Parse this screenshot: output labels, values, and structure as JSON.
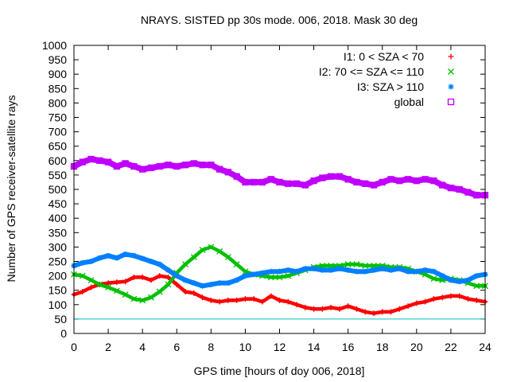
{
  "chart_data": {
    "type": "scatter",
    "title": "NRAYS. SISTED pp 30s mode. 006, 2018. Mask 30 deg",
    "xlabel": "GPS time [hours of doy 006, 2018]",
    "ylabel": "Number of GPS receiver-satellite rays",
    "xlim": [
      0,
      24
    ],
    "ylim": [
      0,
      1000
    ],
    "x_ticks": [
      0,
      2,
      4,
      6,
      8,
      10,
      12,
      14,
      16,
      18,
      20,
      22,
      24
    ],
    "y_ticks": [
      0,
      50,
      100,
      150,
      200,
      250,
      300,
      350,
      400,
      450,
      500,
      550,
      600,
      650,
      700,
      750,
      800,
      850,
      900,
      950,
      1000
    ],
    "legend_position": "top-right",
    "threshold_line": {
      "y": 50,
      "color": "#00c0c0"
    },
    "series": [
      {
        "name": "I1: 0 < SZA < 70",
        "color": "#ff0000",
        "marker": "+",
        "x": [
          0,
          0.5,
          1,
          1.5,
          2,
          2.5,
          3,
          3.5,
          4,
          4.5,
          5,
          5.5,
          6,
          6.5,
          7,
          7.5,
          8,
          8.5,
          9,
          9.5,
          10,
          10.5,
          11,
          11.5,
          12,
          12.5,
          13,
          13.5,
          14,
          14.5,
          15,
          15.5,
          16,
          16.5,
          17,
          17.5,
          18,
          18.5,
          19,
          19.5,
          20,
          20.5,
          21,
          21.5,
          22,
          22.5,
          23,
          23.5,
          24
        ],
        "y": [
          135,
          145,
          160,
          170,
          175,
          178,
          180,
          195,
          195,
          185,
          200,
          195,
          170,
          145,
          140,
          125,
          115,
          110,
          115,
          115,
          120,
          120,
          110,
          130,
          115,
          110,
          100,
          90,
          85,
          85,
          90,
          85,
          95,
          85,
          75,
          70,
          75,
          75,
          85,
          95,
          105,
          110,
          120,
          125,
          130,
          130,
          120,
          115,
          110
        ]
      },
      {
        "name": "I2: 70 <= SZA <= 110",
        "color": "#00c000",
        "marker": "x",
        "x": [
          0,
          0.5,
          1,
          1.5,
          2,
          2.5,
          3,
          3.5,
          4,
          4.5,
          5,
          5.5,
          6,
          6.5,
          7,
          7.5,
          8,
          8.5,
          9,
          9.5,
          10,
          10.5,
          11,
          11.5,
          12,
          12.5,
          13,
          13.5,
          14,
          14.5,
          15,
          15.5,
          16,
          16.5,
          17,
          17.5,
          18,
          18.5,
          19,
          19.5,
          20,
          20.5,
          21,
          21.5,
          22,
          22.5,
          23,
          23.5,
          24
        ],
        "y": [
          205,
          200,
          185,
          170,
          160,
          148,
          135,
          120,
          115,
          125,
          145,
          170,
          210,
          240,
          265,
          290,
          300,
          285,
          265,
          240,
          215,
          205,
          200,
          195,
          195,
          200,
          210,
          220,
          230,
          235,
          235,
          235,
          240,
          240,
          235,
          235,
          235,
          230,
          230,
          225,
          215,
          205,
          190,
          185,
          190,
          185,
          175,
          165,
          165
        ]
      },
      {
        "name": "I3: SZA > 110",
        "color": "#0080ff",
        "marker": "*",
        "x": [
          0,
          0.5,
          1,
          1.5,
          2,
          2.5,
          3,
          3.5,
          4,
          4.5,
          5,
          5.5,
          6,
          6.5,
          7,
          7.5,
          8,
          8.5,
          9,
          9.5,
          10,
          10.5,
          11,
          11.5,
          12,
          12.5,
          13,
          13.5,
          14,
          14.5,
          15,
          15.5,
          16,
          16.5,
          17,
          17.5,
          18,
          18.5,
          19,
          19.5,
          20,
          20.5,
          21,
          21.5,
          22,
          22.5,
          23,
          23.5,
          24
        ],
        "y": [
          235,
          245,
          250,
          262,
          270,
          262,
          275,
          270,
          260,
          250,
          240,
          220,
          200,
          185,
          175,
          165,
          170,
          175,
          175,
          185,
          200,
          205,
          210,
          215,
          215,
          220,
          215,
          225,
          225,
          220,
          220,
          225,
          220,
          215,
          215,
          220,
          225,
          220,
          225,
          215,
          215,
          220,
          215,
          200,
          185,
          180,
          185,
          200,
          205
        ]
      },
      {
        "name": "global",
        "color": "#c000ff",
        "marker": "square",
        "x": [
          0,
          0.5,
          1,
          1.5,
          2,
          2.5,
          3,
          3.5,
          4,
          4.5,
          5,
          5.5,
          6,
          6.5,
          7,
          7.5,
          8,
          8.5,
          9,
          9.5,
          10,
          10.5,
          11,
          11.5,
          12,
          12.5,
          13,
          13.5,
          14,
          14.5,
          15,
          15.5,
          16,
          16.5,
          17,
          17.5,
          18,
          18.5,
          19,
          19.5,
          20,
          20.5,
          21,
          21.5,
          22,
          22.5,
          23,
          23.5,
          24
        ],
        "y": [
          580,
          595,
          605,
          600,
          595,
          580,
          590,
          580,
          570,
          575,
          580,
          585,
          580,
          585,
          590,
          585,
          585,
          570,
          560,
          545,
          525,
          525,
          525,
          535,
          525,
          520,
          520,
          515,
          530,
          540,
          545,
          545,
          535,
          525,
          520,
          515,
          525,
          535,
          530,
          535,
          530,
          535,
          530,
          515,
          505,
          500,
          490,
          480,
          480
        ]
      }
    ]
  }
}
